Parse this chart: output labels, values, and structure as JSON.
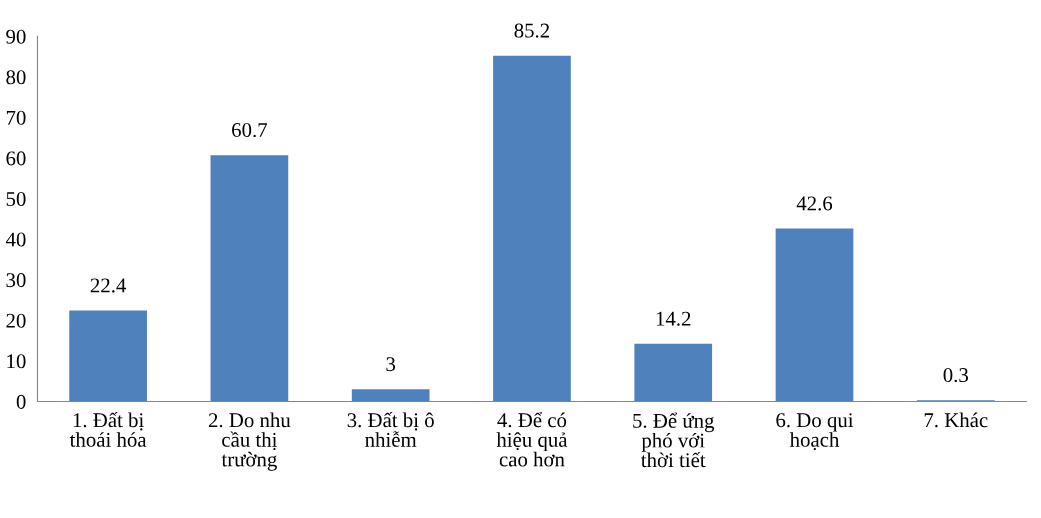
{
  "chart_data": {
    "type": "bar",
    "categories": [
      "1. Đất bị\nthoái hóa",
      "2. Do nhu\ncầu thị\ntrường",
      "3. Đất bị ô\nnhiễm",
      "4. Để có\nhiệu quả\ncao hơn",
      "5. Để ứng\nphó với\nthời tiết",
      "6. Do qui\nhoạch",
      "7. Khác"
    ],
    "values": [
      22.4,
      60.7,
      3,
      85.2,
      14.2,
      42.6,
      0.3
    ],
    "color": "#4f81bd",
    "ylim": [
      0,
      90
    ],
    "yticks": [
      0,
      10,
      20,
      30,
      40,
      50,
      60,
      70,
      80,
      90
    ],
    "grid": false,
    "legend": false,
    "data_labels": true
  }
}
